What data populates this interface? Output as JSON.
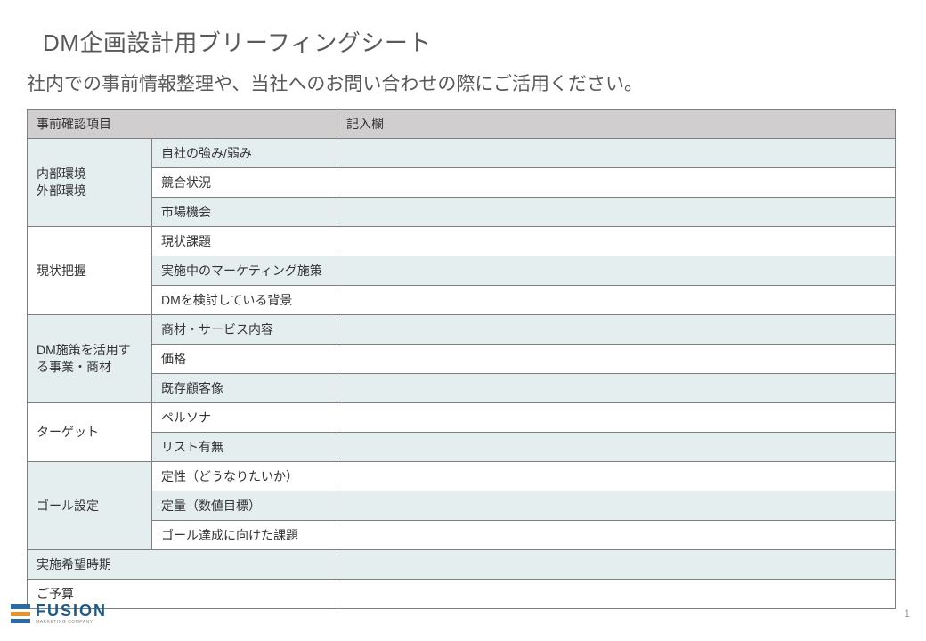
{
  "title": "DM企画設計用ブリーフィングシート",
  "subtitle": "社内での事前情報整理や、当社へのお問い合わせの際にご活用ください。",
  "table": {
    "header_col1": "事前確認項目",
    "header_col2": "記入欄",
    "sections": [
      {
        "category": "内部環境\n外部環境",
        "shaded": true,
        "rows": [
          {
            "sub": "自社の強み/弱み",
            "entry": ""
          },
          {
            "sub": "競合状況",
            "entry": ""
          },
          {
            "sub": "市場機会",
            "entry": ""
          }
        ]
      },
      {
        "category": "現状把握",
        "shaded": false,
        "rows": [
          {
            "sub": "現状課題",
            "entry": ""
          },
          {
            "sub": "実施中のマーケティング施策",
            "entry": ""
          },
          {
            "sub": "DMを検討している背景",
            "entry": ""
          }
        ]
      },
      {
        "category": "DM施策を活用する事業・商材",
        "shaded": true,
        "rows": [
          {
            "sub": "商材・サービス内容",
            "entry": ""
          },
          {
            "sub": "価格",
            "entry": ""
          },
          {
            "sub": "既存顧客像",
            "entry": ""
          }
        ]
      },
      {
        "category": "ターゲット",
        "shaded": false,
        "rows": [
          {
            "sub": "ペルソナ",
            "entry": ""
          },
          {
            "sub": "リスト有無",
            "entry": ""
          }
        ]
      },
      {
        "category": "ゴール設定",
        "shaded": true,
        "rows": [
          {
            "sub": "定性（どうなりたいか）",
            "entry": ""
          },
          {
            "sub": "定量（数値目標）",
            "entry": ""
          },
          {
            "sub": "ゴール達成に向けた課題",
            "entry": ""
          }
        ]
      }
    ],
    "single_rows": [
      {
        "label": "実施希望時期",
        "shaded": false,
        "entry": ""
      },
      {
        "label": "ご予算",
        "shaded": true,
        "entry": ""
      }
    ],
    "colors": {
      "border": "#7f7f7f",
      "header_bg": "#d0cece",
      "shade_bg": "#e4eeee",
      "text": "#333333"
    }
  },
  "logo": {
    "name": "FUSION",
    "sub": "MARKETING COMPANY",
    "bar_colors": [
      "#2a6aa8",
      "#e8922e",
      "#2a6aa8"
    ]
  },
  "page_number": "1"
}
